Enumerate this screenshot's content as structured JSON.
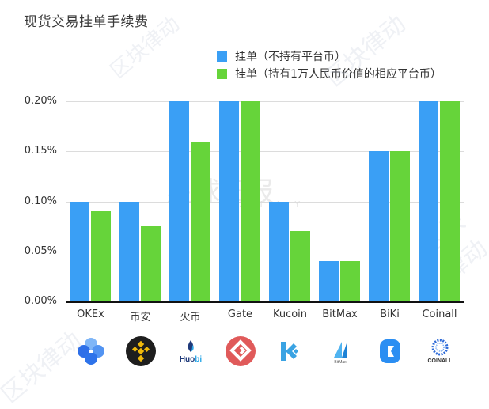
{
  "chart_data": {
    "type": "bar",
    "title": "现货交易挂单手续费",
    "categories": [
      "OKEx",
      "币安",
      "火币",
      "Gate",
      "Kucoin",
      "BitMax",
      "BiKi",
      "Coinall"
    ],
    "series": [
      {
        "name": "挂单（不持有平台币）",
        "color": "#3a9ff5",
        "values": [
          0.1,
          0.1,
          0.2,
          0.2,
          0.1,
          0.04,
          0.15,
          0.2
        ]
      },
      {
        "name": "挂单（持有1万人民币价值的相应平台币）",
        "color": "#66d43a",
        "values": [
          0.09,
          0.075,
          0.16,
          0.2,
          0.07,
          0.04,
          0.15,
          0.2
        ]
      }
    ],
    "xlabel": "",
    "ylabel": "",
    "unit": "%",
    "ylim": [
      0,
      0.2
    ],
    "yticks": [
      "0.00%",
      "0.05%",
      "0.10%",
      "0.15%",
      "0.20%"
    ],
    "grid": true,
    "legend_position": "top-right"
  },
  "logos": [
    {
      "name": "okex-logo"
    },
    {
      "name": "binance-logo"
    },
    {
      "name": "huobi-logo",
      "text": "Huobi"
    },
    {
      "name": "gate-logo"
    },
    {
      "name": "kucoin-logo"
    },
    {
      "name": "bitmax-logo",
      "text": "BitMax"
    },
    {
      "name": "biki-logo"
    },
    {
      "name": "coinall-logo",
      "text": "COINALL"
    }
  ],
  "watermarks": [
    "区块律动",
    "BlockBeats",
    "星球日报",
    "ODAILY"
  ]
}
